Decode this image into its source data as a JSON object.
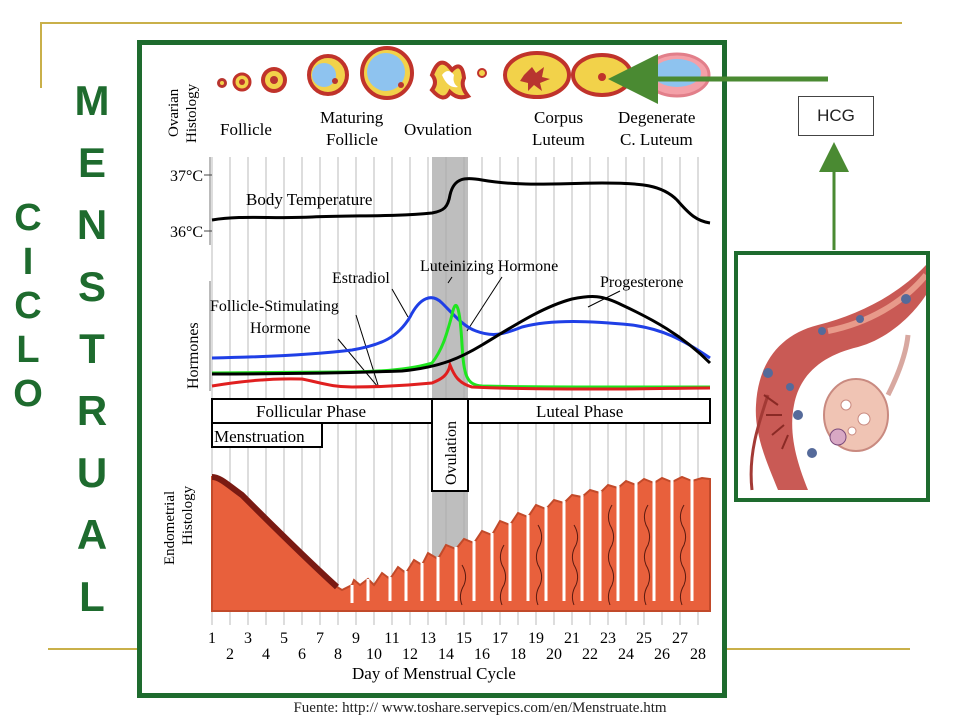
{
  "title_vertical_1": [
    "C",
    "I",
    "C",
    "L",
    "O"
  ],
  "title_vertical_2": [
    "M",
    "E",
    "N",
    "S",
    "T",
    "R",
    "U",
    "A",
    "L"
  ],
  "hcg_label": "HCG",
  "source": "Fuente: http:// www.toshare.servepics.com/en/Menstruate.htm",
  "diagram": {
    "ovarian_label_1": "Ovarian",
    "ovarian_label_2": "Histology",
    "stages": [
      "Follicle",
      "Maturing",
      "Follicle",
      "Ovulation",
      "Corpus",
      "Luteum",
      "Degenerate",
      "C. Luteum"
    ],
    "temp_high": "37°C",
    "temp_low": "36°C",
    "body_temp_label": "Body Temperature",
    "hormones_label": "Hormones",
    "estradiol": "Estradiol",
    "lh": "Luteinizing  Hormone",
    "progesterone": "Progesterone",
    "fsh_1": "Follicle-Stimulating",
    "fsh_2": "Hormone",
    "follicular_phase": "Follicular Phase",
    "luteal_phase": "Luteal Phase",
    "menstruation": "Menstruation",
    "ovulation_phase": "Ovulation",
    "endo_label_1": "Endometrial",
    "endo_label_2": "Histology",
    "days_odd": [
      "1",
      "3",
      "5",
      "7",
      "9",
      "11",
      "13",
      "15",
      "17",
      "19",
      "21",
      "23",
      "25",
      "27"
    ],
    "days_even": [
      "2",
      "4",
      "6",
      "8",
      "10",
      "12",
      "14",
      "16",
      "18",
      "20",
      "22",
      "24",
      "26",
      "28"
    ],
    "x_axis_label": "Day of Menstrual Cycle"
  },
  "colors": {
    "frame_green": "#1e6b2e",
    "estradiol": "#1f3fe6",
    "lh": "#1fe61f",
    "fsh": "#e01f1f",
    "progesterone": "#000000",
    "endometrium": "#e8603c"
  }
}
